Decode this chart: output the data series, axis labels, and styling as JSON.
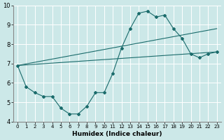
{
  "xlabel": "Humidex (Indice chaleur)",
  "xlim": [
    -0.5,
    23.5
  ],
  "ylim": [
    4,
    10
  ],
  "yticks": [
    4,
    5,
    6,
    7,
    8,
    9,
    10
  ],
  "xticks": [
    0,
    1,
    2,
    3,
    4,
    5,
    6,
    7,
    8,
    9,
    10,
    11,
    12,
    13,
    14,
    15,
    16,
    17,
    18,
    19,
    20,
    21,
    22,
    23
  ],
  "bg_color": "#cce8e8",
  "grid_color": "#ffffff",
  "line_color": "#1a6b6b",
  "lines": [
    {
      "x": [
        0,
        1,
        2,
        3,
        4,
        5,
        6,
        7,
        8,
        9,
        10,
        11,
        12,
        13,
        14,
        15,
        16,
        17,
        18,
        19,
        20,
        21,
        22,
        23
      ],
      "y": [
        6.9,
        5.8,
        5.5,
        5.3,
        5.3,
        4.7,
        4.4,
        4.4,
        4.8,
        5.5,
        5.5,
        6.5,
        7.8,
        8.8,
        9.6,
        9.7,
        9.4,
        9.5,
        8.8,
        8.3,
        7.5,
        7.3,
        7.5,
        7.6
      ]
    },
    {
      "x": [
        0,
        4,
        10,
        15,
        19,
        20,
        21,
        22,
        23
      ],
      "y": [
        6.9,
        5.3,
        5.5,
        8.2,
        8.3,
        8.3,
        7.3,
        7.5,
        7.6
      ]
    },
    {
      "x": [
        0,
        4,
        10,
        15,
        19,
        20,
        21,
        22,
        23
      ],
      "y": [
        6.9,
        5.3,
        5.5,
        8.2,
        8.3,
        8.3,
        7.3,
        7.5,
        7.6
      ]
    }
  ]
}
